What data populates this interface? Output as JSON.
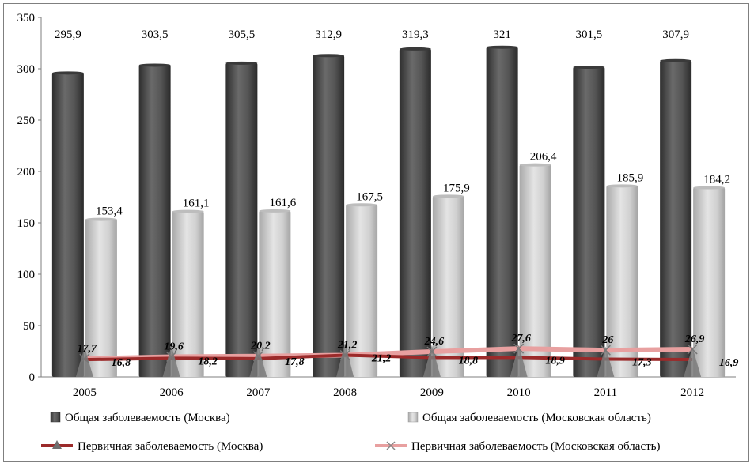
{
  "chart_data": {
    "type": "bar",
    "categories": [
      "2005",
      "2006",
      "2007",
      "2008",
      "2009",
      "2010",
      "2011",
      "2012"
    ],
    "ylim": [
      0,
      350
    ],
    "yticks": [
      "0",
      "50",
      "100",
      "150",
      "200",
      "250",
      "300",
      "350"
    ],
    "grid": false,
    "legend_position": "bottom",
    "series": [
      {
        "name": "Общая заболеваемость (Москва)",
        "kind": "bar",
        "color": "#4a4a4a",
        "values": [
          295.9,
          303.5,
          305.5,
          312.9,
          319.3,
          321,
          301.5,
          307.9
        ],
        "labels": [
          "295,9",
          "303,5",
          "305,5",
          "312,9",
          "319,3",
          "321",
          "301,5",
          "307,9"
        ]
      },
      {
        "name": "Общая заболеваемость (Московская область)",
        "kind": "bar",
        "color": "#c8c8c8",
        "values": [
          153.4,
          161.1,
          161.6,
          167.5,
          175.9,
          206.4,
          185.9,
          184.2
        ],
        "labels": [
          "153,4",
          "161,1",
          "161,6",
          "167,5",
          "175,9",
          "206,4",
          "185,9",
          "184,2"
        ]
      },
      {
        "name": "Первичная заболеваемость (Москва)",
        "kind": "line",
        "color": "#9b2a2a",
        "marker": "triangle",
        "values": [
          16.8,
          18.2,
          17.8,
          21.2,
          18.8,
          18.9,
          17.3,
          16.9
        ],
        "labels": [
          "16,8",
          "18,2",
          "17,8",
          "21,2",
          "18,8",
          "18,9",
          "17,3",
          "16,9"
        ]
      },
      {
        "name": "Первичная заболеваемость (Московская область)",
        "kind": "line",
        "color": "#e8a0a0",
        "marker": "x",
        "values": [
          17.7,
          19.6,
          20.2,
          21.2,
          24.6,
          27.6,
          26,
          26.9
        ],
        "labels": [
          "17,7",
          "19,6",
          "20,2",
          "21,2",
          "24,6",
          "27,6",
          "26",
          "26,9"
        ]
      }
    ]
  }
}
